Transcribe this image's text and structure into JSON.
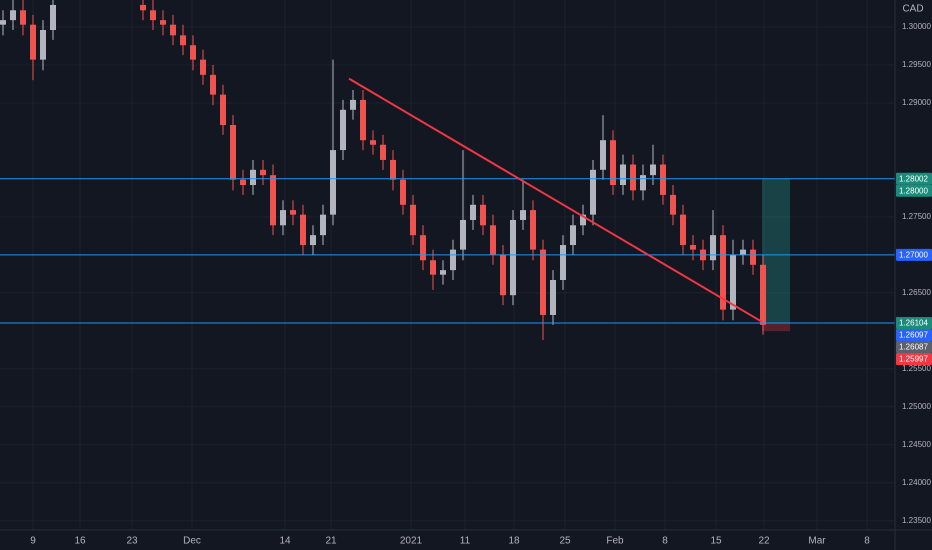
{
  "chart_data": {
    "type": "candlestick",
    "currency": "CAD",
    "xlim": [
      -3.3,
      86.2
    ],
    "ylim": [
      1.2338,
      1.30355
    ],
    "grid": true,
    "up_color": "#b2b5be",
    "down_color": "#ef5350",
    "xticks": [
      {
        "value": 0,
        "label": "9"
      },
      {
        "value": 4.7,
        "label": "16"
      },
      {
        "value": 9.9,
        "label": "23"
      },
      {
        "value": 15.9,
        "label": "Dec"
      },
      {
        "value": 25.2,
        "label": "14"
      },
      {
        "value": 29.8,
        "label": "21"
      },
      {
        "value": 37.8,
        "label": "2021"
      },
      {
        "value": 43.2,
        "label": "11"
      },
      {
        "value": 48.1,
        "label": "18"
      },
      {
        "value": 53.2,
        "label": "25"
      },
      {
        "value": 58.2,
        "label": "Feb"
      },
      {
        "value": 63.2,
        "label": "8"
      },
      {
        "value": 68.3,
        "label": "15"
      },
      {
        "value": 73.1,
        "label": "22"
      },
      {
        "value": 78.4,
        "label": "Mar"
      },
      {
        "value": 83.4,
        "label": "8"
      }
    ],
    "yticks": [
      {
        "value": 1.3,
        "label": "1.30000"
      },
      {
        "value": 1.295,
        "label": "1.29500"
      },
      {
        "value": 1.29,
        "label": "1.29000"
      },
      {
        "value": 1.275,
        "label": "1.27500"
      },
      {
        "value": 1.265,
        "label": "1.26500"
      },
      {
        "value": 1.255,
        "label": "1.25500"
      },
      {
        "value": 1.25,
        "label": "1.25000"
      },
      {
        "value": 1.245,
        "label": "1.24500"
      },
      {
        "value": 1.24,
        "label": "1.24000"
      },
      {
        "value": 1.235,
        "label": "1.23500"
      }
    ],
    "candles": {
      "x": [
        -3,
        -2,
        -1,
        0,
        1,
        2,
        11,
        12,
        13,
        14,
        15,
        16,
        17,
        18,
        19,
        20,
        21,
        22,
        23,
        24,
        25,
        26,
        27,
        28,
        29,
        30,
        31,
        32,
        33,
        34,
        35,
        36,
        37,
        38,
        39,
        40,
        41,
        42,
        43,
        44,
        45,
        46,
        47,
        48,
        49,
        50,
        51,
        52,
        53,
        54,
        55,
        56,
        57,
        58,
        59,
        60,
        61,
        62,
        63,
        64,
        65,
        66,
        67,
        68,
        69,
        70,
        71,
        72,
        73
      ],
      "open": [
        1.3003,
        1.3009,
        1.3022,
        1.3003,
        1.2957,
        1.2996,
        1.3029,
        1.3022,
        1.3009,
        1.3003,
        1.2989,
        1.2976,
        1.2957,
        1.2937,
        1.2911,
        1.2871,
        1.2799,
        1.2792,
        1.2812,
        1.2805,
        1.2739,
        1.2759,
        1.2753,
        1.2713,
        1.2726,
        1.2753,
        1.2838,
        1.2891,
        1.2904,
        1.2851,
        1.2845,
        1.2825,
        1.2799,
        1.2766,
        1.2726,
        1.2693,
        1.2674,
        1.268,
        1.2707,
        1.2746,
        1.2766,
        1.2739,
        1.27,
        1.2647,
        1.2746,
        1.2759,
        1.2707,
        1.2621,
        1.2667,
        1.2713,
        1.2739,
        1.2753,
        1.2812,
        1.2851,
        1.2792,
        1.2819,
        1.2785,
        1.2805,
        1.2819,
        1.2779,
        1.2753,
        1.2713,
        1.2707,
        1.2693,
        1.2726,
        1.2628,
        1.27,
        1.2707,
        1.2687
      ],
      "high": [
        1.3022,
        1.3036,
        1.3036,
        1.3016,
        1.3009,
        1.3036,
        1.3036,
        1.3036,
        1.3022,
        1.3016,
        1.3003,
        1.2989,
        1.297,
        1.295,
        1.2924,
        1.2884,
        1.2812,
        1.2825,
        1.2825,
        1.2819,
        1.2772,
        1.2772,
        1.2766,
        1.2739,
        1.2766,
        1.2957,
        1.2904,
        1.2917,
        1.2917,
        1.2864,
        1.2858,
        1.2838,
        1.2812,
        1.2779,
        1.2739,
        1.2707,
        1.2693,
        1.272,
        1.2838,
        1.2779,
        1.2779,
        1.2753,
        1.2713,
        1.2759,
        1.2799,
        1.2772,
        1.272,
        1.268,
        1.2726,
        1.2753,
        1.2766,
        1.2825,
        1.2884,
        1.2864,
        1.2832,
        1.2832,
        1.2819,
        1.2845,
        1.2832,
        1.2792,
        1.2766,
        1.2726,
        1.272,
        1.2759,
        1.2739,
        1.272,
        1.272,
        1.272,
        1.27
      ],
      "low": [
        1.2989,
        1.2996,
        1.2989,
        1.293,
        1.2943,
        1.2983,
        1.3009,
        1.2996,
        1.2989,
        1.2976,
        1.2963,
        1.2943,
        1.2924,
        1.2897,
        1.2858,
        1.2785,
        1.2779,
        1.2779,
        1.2792,
        1.2726,
        1.2726,
        1.2739,
        1.27,
        1.27,
        1.2713,
        1.2739,
        1.2825,
        1.2878,
        1.2838,
        1.2832,
        1.2812,
        1.2785,
        1.2753,
        1.2713,
        1.268,
        1.2654,
        1.2661,
        1.2667,
        1.2693,
        1.2733,
        1.2726,
        1.2687,
        1.2634,
        1.2634,
        1.2733,
        1.2693,
        1.2588,
        1.2608,
        1.2654,
        1.27,
        1.2726,
        1.2739,
        1.2799,
        1.2779,
        1.2779,
        1.2772,
        1.2772,
        1.2792,
        1.2766,
        1.2739,
        1.27,
        1.2693,
        1.268,
        1.268,
        1.2614,
        1.2614,
        1.2687,
        1.2674,
        1.2595
      ],
      "close": [
        1.3009,
        1.3022,
        1.3003,
        1.2957,
        1.2996,
        1.3029,
        1.3022,
        1.3009,
        1.3003,
        1.2989,
        1.2976,
        1.2957,
        1.2937,
        1.2911,
        1.2871,
        1.2799,
        1.2792,
        1.2812,
        1.2805,
        1.2739,
        1.2759,
        1.2753,
        1.2713,
        1.2726,
        1.2753,
        1.2838,
        1.2891,
        1.2904,
        1.2851,
        1.2845,
        1.2825,
        1.2799,
        1.2766,
        1.2726,
        1.2693,
        1.2674,
        1.268,
        1.2707,
        1.2746,
        1.2766,
        1.2739,
        1.27,
        1.2647,
        1.2746,
        1.2759,
        1.2707,
        1.2621,
        1.2667,
        1.2713,
        1.2739,
        1.2753,
        1.2812,
        1.2851,
        1.2792,
        1.2819,
        1.2785,
        1.2805,
        1.2819,
        1.2779,
        1.2753,
        1.2713,
        1.2707,
        1.2693,
        1.2726,
        1.2628,
        1.27,
        1.2707,
        1.2687,
        1.2608
      ]
    },
    "horizontal_lines": {
      "values": [
        1.28002,
        1.27,
        1.26104
      ],
      "color": "#2196f3"
    },
    "trend_line": {
      "x": [
        31.6,
        72.9
      ],
      "y": [
        1.2932,
        1.2612
      ],
      "color": "#f23645"
    },
    "position": {
      "x": [
        72.9,
        75.7
      ],
      "entry": 1.26104,
      "target": 1.28002,
      "stop": 1.25997
    },
    "price_labels": [
      {
        "value": 1.28002,
        "color": "#1b8c7c"
      },
      {
        "value": 1.28,
        "label": "1.28000",
        "color": "#1b8c7c"
      },
      {
        "value": 1.27,
        "label": "1.27000",
        "color": "#2962ff"
      },
      {
        "value": 1.26104,
        "color": "#1b8c7c"
      },
      {
        "value": 1.26097,
        "color": "#2962ff"
      },
      {
        "value": 1.26087,
        "color": "#5d606b"
      },
      {
        "value": 1.25997,
        "color": "#f23645"
      }
    ]
  }
}
